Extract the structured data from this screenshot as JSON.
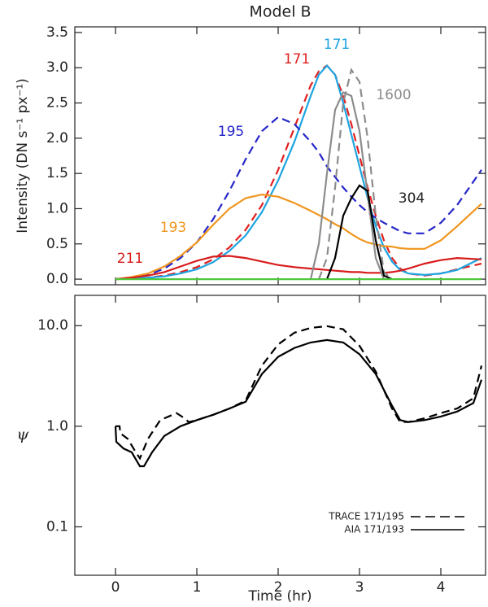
{
  "chart_data": [
    {
      "type": "line",
      "title": "Model B",
      "ylabel": "Intensity (DN s⁻¹ px⁻¹)",
      "xlim": [
        -0.5,
        4.55
      ],
      "xticks": [
        0,
        1,
        2,
        3,
        4
      ],
      "xticklabels": false,
      "ylim": [
        -0.08,
        3.58
      ],
      "yticks": [
        {
          "value": 0,
          "label": "0.0"
        },
        {
          "value": 0.5,
          "label": "0.5"
        },
        {
          "value": 1,
          "label": "1.0"
        },
        {
          "value": 1.5,
          "label": "1.5"
        },
        {
          "value": 2,
          "label": "2.0"
        },
        {
          "value": 2.5,
          "label": "2.5"
        },
        {
          "value": 3,
          "label": "3.0"
        },
        {
          "value": 3.5,
          "label": "3.5"
        }
      ],
      "series": [
        {
          "label": "171",
          "color": "#e02020",
          "dash": true,
          "x": [
            0,
            0.2,
            0.4,
            0.6,
            0.8,
            1.0,
            1.2,
            1.4,
            1.6,
            1.8,
            2.0,
            2.2,
            2.4,
            2.5,
            2.6,
            2.7,
            2.8,
            2.9,
            3.0,
            3.1,
            3.2,
            3.3,
            3.4,
            3.5,
            3.6,
            3.8,
            4.0,
            4.2,
            4.5
          ],
          "values": [
            0,
            0.01,
            0.02,
            0.05,
            0.1,
            0.17,
            0.28,
            0.45,
            0.7,
            1.05,
            1.55,
            2.15,
            2.75,
            2.95,
            3.03,
            2.9,
            2.6,
            2.2,
            1.75,
            1.3,
            0.9,
            0.55,
            0.3,
            0.15,
            0.08,
            0.05,
            0.08,
            0.14,
            0.22
          ]
        },
        {
          "label": "171",
          "color": "#1ea4e0",
          "dash": false,
          "x": [
            0,
            0.2,
            0.4,
            0.6,
            0.8,
            1.0,
            1.2,
            1.4,
            1.6,
            1.8,
            2.0,
            2.2,
            2.4,
            2.5,
            2.6,
            2.7,
            2.8,
            2.9,
            3.0,
            3.1,
            3.2,
            3.3,
            3.4,
            3.5,
            3.6,
            3.8,
            4.0,
            4.2,
            4.5
          ],
          "values": [
            0,
            0.01,
            0.02,
            0.04,
            0.08,
            0.14,
            0.24,
            0.4,
            0.62,
            0.95,
            1.4,
            1.95,
            2.6,
            2.9,
            3.03,
            2.9,
            2.5,
            2.05,
            1.6,
            1.15,
            0.75,
            0.45,
            0.25,
            0.13,
            0.08,
            0.06,
            0.08,
            0.13,
            0.3
          ]
        },
        {
          "label": "195",
          "color": "#2626c8",
          "dash": true,
          "x": [
            0,
            0.2,
            0.4,
            0.6,
            0.8,
            1.0,
            1.2,
            1.4,
            1.6,
            1.8,
            2.0,
            2.2,
            2.4,
            2.5,
            2.6,
            2.7,
            2.8,
            2.9,
            3.0,
            3.1,
            3.2,
            3.3,
            3.4,
            3.5,
            3.6,
            3.8,
            4.0,
            4.2,
            4.5
          ],
          "values": [
            0,
            0.02,
            0.06,
            0.15,
            0.3,
            0.52,
            0.85,
            1.25,
            1.7,
            2.1,
            2.3,
            2.2,
            1.95,
            1.8,
            1.6,
            1.45,
            1.3,
            1.17,
            1.05,
            0.95,
            0.87,
            0.8,
            0.74,
            0.68,
            0.65,
            0.65,
            0.8,
            1.05,
            1.55
          ]
        },
        {
          "label": "193",
          "color": "#f0961e",
          "dash": false,
          "x": [
            0,
            0.2,
            0.4,
            0.6,
            0.8,
            1.0,
            1.2,
            1.4,
            1.6,
            1.8,
            2.0,
            2.2,
            2.4,
            2.5,
            2.6,
            2.7,
            2.8,
            2.9,
            3.0,
            3.1,
            3.2,
            3.3,
            3.4,
            3.5,
            3.6,
            3.8,
            4.0,
            4.2,
            4.5
          ],
          "values": [
            0,
            0.03,
            0.08,
            0.18,
            0.33,
            0.52,
            0.77,
            1.0,
            1.15,
            1.2,
            1.17,
            1.08,
            0.97,
            0.91,
            0.85,
            0.78,
            0.72,
            0.64,
            0.57,
            0.52,
            0.49,
            0.47,
            0.46,
            0.44,
            0.43,
            0.43,
            0.55,
            0.75,
            1.07
          ]
        },
        {
          "label": "211",
          "color": "#d81c1c",
          "dash": false,
          "x": [
            0,
            0.2,
            0.4,
            0.6,
            0.8,
            1.0,
            1.2,
            1.4,
            1.6,
            1.8,
            2.0,
            2.2,
            2.4,
            2.5,
            2.6,
            2.7,
            2.8,
            2.9,
            3.0,
            3.1,
            3.2,
            3.3,
            3.4,
            3.5,
            3.6,
            3.8,
            4.0,
            4.2,
            4.5
          ],
          "values": [
            0,
            0.02,
            0.05,
            0.1,
            0.18,
            0.26,
            0.32,
            0.33,
            0.3,
            0.25,
            0.2,
            0.17,
            0.15,
            0.14,
            0.13,
            0.12,
            0.11,
            0.1,
            0.1,
            0.09,
            0.09,
            0.09,
            0.1,
            0.12,
            0.15,
            0.22,
            0.27,
            0.3,
            0.28
          ]
        },
        {
          "label": "1600",
          "color": "#8c8c8c",
          "dash": true,
          "x": [
            2.5,
            2.6,
            2.7,
            2.8,
            2.9,
            3.0,
            3.1,
            3.2,
            3.3,
            3.4
          ],
          "values": [
            0,
            0.3,
            1.3,
            2.5,
            2.97,
            2.8,
            2.0,
            0.9,
            0.1,
            0
          ]
        },
        {
          "color": "#8c8c8c",
          "dash": false,
          "x": [
            2.4,
            2.5,
            2.6,
            2.7,
            2.8,
            2.9,
            3.0,
            3.1,
            3.2,
            3.3
          ],
          "values": [
            0,
            0.5,
            1.5,
            2.4,
            2.65,
            2.6,
            2.1,
            1.2,
            0.3,
            0
          ]
        },
        {
          "label": "304",
          "color": "#000000",
          "dash": false,
          "x": [
            2.6,
            2.7,
            2.8,
            2.9,
            3.0,
            3.1,
            3.2,
            3.3,
            3.4
          ],
          "values": [
            0,
            0.3,
            0.9,
            1.15,
            1.33,
            1.25,
            0.55,
            0.05,
            0
          ]
        },
        {
          "color": "#4ec83a",
          "dash": false,
          "x": [
            0,
            4.5
          ],
          "values": [
            0,
            0
          ]
        }
      ]
    },
    {
      "type": "line",
      "ylabel": "ψ",
      "xlabel": "Time (hr)",
      "yscale": "log",
      "xlim": [
        -0.5,
        4.55
      ],
      "xticks": [
        0,
        1,
        2,
        3,
        4
      ],
      "ylim": [
        0.033,
        20
      ],
      "yticks": [
        0.1,
        {
          "value": 1,
          "label": "1.0"
        },
        {
          "value": 10,
          "label": "10.0"
        }
      ],
      "legend": "lower right",
      "series": [
        {
          "name": "TRACE 171/195",
          "color": "#000000",
          "dash": true,
          "x": [
            0,
            0.05,
            0.06,
            0.15,
            0.25,
            0.3,
            0.4,
            0.55,
            0.75,
            0.85,
            0.9,
            1.0,
            1.2,
            1.4,
            1.6,
            1.8,
            2.0,
            2.2,
            2.4,
            2.6,
            2.8,
            3.0,
            3.2,
            3.4,
            3.5,
            3.6,
            3.8,
            4.0,
            4.2,
            4.4,
            4.5
          ],
          "values": [
            1.0,
            1.0,
            0.85,
            0.75,
            0.55,
            0.48,
            0.75,
            1.15,
            1.35,
            1.2,
            1.1,
            1.15,
            1.3,
            1.5,
            1.8,
            4.0,
            6.5,
            8.5,
            9.5,
            9.9,
            9.2,
            6.3,
            3.5,
            1.5,
            1.1,
            1.1,
            1.2,
            1.35,
            1.5,
            1.9,
            4.0
          ]
        },
        {
          "name": "AIA 171/193",
          "color": "#000000",
          "dash": false,
          "x": [
            0,
            0.01,
            0.1,
            0.2,
            0.3,
            0.35,
            0.45,
            0.6,
            0.8,
            1.0,
            1.2,
            1.4,
            1.6,
            1.8,
            2.0,
            2.2,
            2.4,
            2.6,
            2.8,
            3.0,
            3.2,
            3.4,
            3.5,
            3.6,
            3.8,
            4.0,
            4.2,
            4.4,
            4.5
          ],
          "values": [
            1.0,
            0.7,
            0.6,
            0.55,
            0.4,
            0.4,
            0.55,
            0.8,
            1.0,
            1.15,
            1.3,
            1.5,
            1.75,
            3.3,
            4.9,
            6.0,
            6.8,
            7.2,
            6.8,
            5.2,
            3.3,
            1.6,
            1.15,
            1.1,
            1.15,
            1.25,
            1.4,
            1.7,
            2.9
          ]
        }
      ]
    }
  ]
}
